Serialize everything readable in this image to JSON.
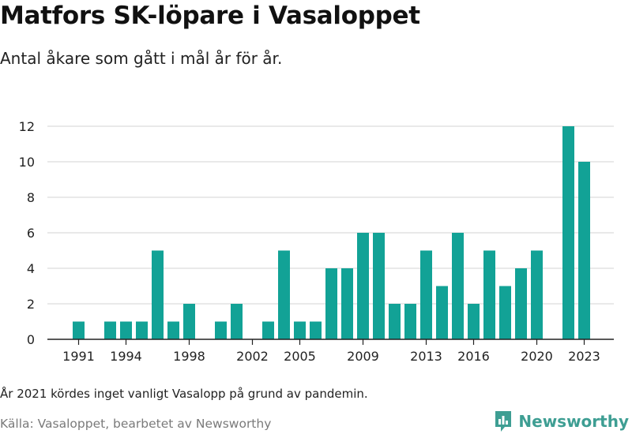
{
  "header": {
    "title": "Matfors SK-löpare i Vasaloppet",
    "subtitle": "Antal åkare som gått i mål år för år."
  },
  "footer": {
    "note": "År 2021 kördes inget vanligt Vasalopp på grund av pandemin.",
    "source": "Källa: Vasaloppet, bearbetet av Newsworthy",
    "brand": "Newsworthy"
  },
  "colors": {
    "bar": "#12a296",
    "grid": "#dcdcdc",
    "axis": "#222222",
    "brand": "#3e9e93"
  },
  "icons": {
    "brand": "chart-logo-icon"
  },
  "chart_data": {
    "type": "bar",
    "x": [
      1991,
      1992,
      1993,
      1994,
      1995,
      1996,
      1997,
      1998,
      1999,
      2000,
      2001,
      2002,
      2003,
      2004,
      2005,
      2006,
      2007,
      2008,
      2009,
      2010,
      2011,
      2012,
      2013,
      2014,
      2015,
      2016,
      2017,
      2018,
      2019,
      2020,
      2021,
      2022,
      2023
    ],
    "values": [
      1,
      0,
      1,
      1,
      1,
      5,
      1,
      2,
      0,
      1,
      2,
      0,
      1,
      5,
      1,
      1,
      4,
      4,
      6,
      6,
      2,
      2,
      5,
      3,
      6,
      2,
      5,
      3,
      4,
      5,
      0,
      12,
      10
    ],
    "x_ticks": [
      "1991",
      "1994",
      "1998",
      "2002",
      "2005",
      "2009",
      "2013",
      "2016",
      "2020",
      "2023"
    ],
    "y_ticks": [
      "0",
      "2",
      "4",
      "6",
      "8",
      "10",
      "12"
    ],
    "ylim": [
      0,
      12
    ],
    "grid": true,
    "xlabel": "",
    "ylabel": ""
  }
}
